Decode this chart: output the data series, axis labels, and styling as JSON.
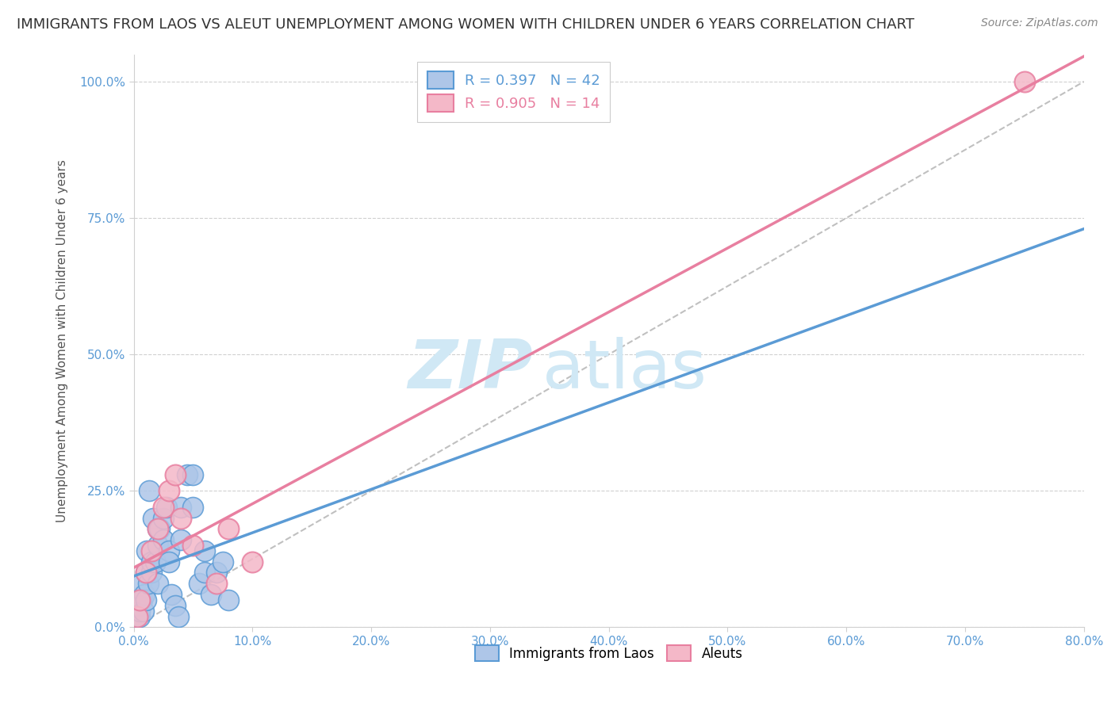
{
  "title": "IMMIGRANTS FROM LAOS VS ALEUT UNEMPLOYMENT AMONG WOMEN WITH CHILDREN UNDER 6 YEARS CORRELATION CHART",
  "source": "Source: ZipAtlas.com",
  "xlabel_ticks": [
    "0.0%",
    "10.0%",
    "20.0%",
    "30.0%",
    "40.0%",
    "50.0%",
    "60.0%",
    "70.0%",
    "80.0%"
  ],
  "ylabel_ticks": [
    "0.0%",
    "25.0%",
    "50.0%",
    "75.0%",
    "100.0%"
  ],
  "ylabel_ticks_vals": [
    0,
    25,
    50,
    75,
    100
  ],
  "xlabel_ticks_vals": [
    0,
    10,
    20,
    30,
    40,
    50,
    60,
    70,
    80
  ],
  "xlim": [
    0,
    80
  ],
  "ylim": [
    0,
    105
  ],
  "ylabel": "Unemployment Among Women with Children Under 6 years",
  "legend1_label": "Immigrants from Laos",
  "legend2_label": "Aleuts",
  "r1": 0.397,
  "n1": 42,
  "r2": 0.905,
  "n2": 14,
  "color_laos": "#aec6e8",
  "color_laos_edge": "#5b9bd5",
  "color_aleut": "#f4b8c8",
  "color_aleut_edge": "#e87fa0",
  "color_line_laos": "#5b9bd5",
  "color_line_aleut": "#e87fa0",
  "color_diag": "#c0c0c0",
  "watermark_color": "#d0e8f5",
  "background_color": "#ffffff",
  "title_fontsize": 13,
  "source_fontsize": 10,
  "laos_x": [
    0.2,
    0.3,
    0.4,
    0.5,
    0.5,
    0.6,
    0.7,
    0.8,
    0.9,
    1.0,
    1.0,
    1.1,
    1.2,
    1.3,
    1.5,
    1.5,
    1.6,
    1.8,
    2.0,
    2.0,
    2.0,
    2.2,
    2.5,
    2.5,
    2.8,
    3.0,
    3.0,
    3.2,
    3.5,
    3.8,
    4.0,
    4.0,
    4.5,
    5.0,
    5.0,
    5.5,
    6.0,
    6.0,
    6.5,
    7.0,
    7.5,
    8.0
  ],
  "laos_y": [
    2.0,
    2.0,
    4.0,
    2.0,
    3.0,
    8.0,
    5.0,
    3.0,
    6.0,
    5.0,
    10.0,
    14.0,
    8.0,
    25.0,
    10.0,
    12.0,
    20.0,
    12.0,
    15.0,
    18.0,
    8.0,
    18.0,
    20.0,
    16.0,
    22.0,
    14.0,
    12.0,
    6.0,
    4.0,
    2.0,
    16.0,
    22.0,
    28.0,
    22.0,
    28.0,
    8.0,
    14.0,
    10.0,
    6.0,
    10.0,
    12.0,
    5.0
  ],
  "aleut_x": [
    0.3,
    0.5,
    1.0,
    1.5,
    2.0,
    2.5,
    3.0,
    3.5,
    4.0,
    5.0,
    7.0,
    8.0,
    10.0,
    75.0
  ],
  "aleut_y": [
    2.0,
    5.0,
    10.0,
    14.0,
    18.0,
    22.0,
    25.0,
    28.0,
    20.0,
    15.0,
    8.0,
    18.0,
    12.0,
    100.0
  ],
  "line_laos": [
    0.0,
    1.3
  ],
  "line_aleut_slope": 1.32,
  "line_aleut_intercept": 0.0
}
